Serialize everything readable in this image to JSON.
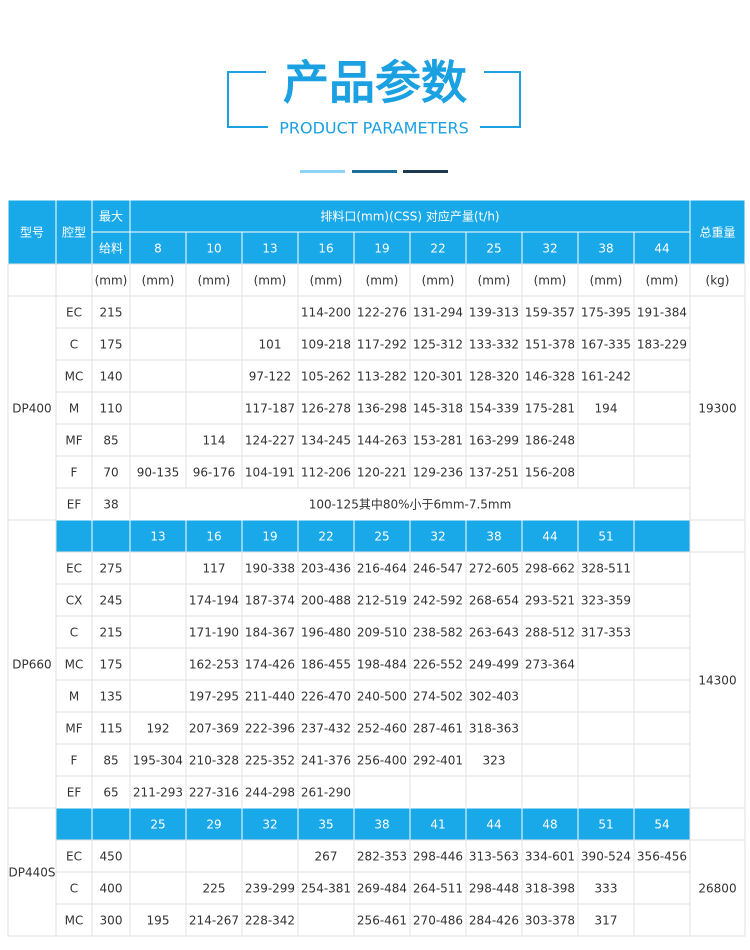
{
  "header": {
    "title": "产品参数",
    "subtitle": "PRODUCT PARAMETERS"
  },
  "table": {
    "head": {
      "model": "型号",
      "cavity": "腔型",
      "feed_top": "最大",
      "feed_bottom": "给料",
      "span": "排料口(mm)(CSS) 对应产量(t/h)",
      "weight": "总重量"
    },
    "units": [
      "(mm)",
      "(mm)",
      "(mm)",
      "(mm)",
      "(mm)",
      "(mm)",
      "(mm)",
      "(mm)",
      "(mm)",
      "(mm)",
      "(mm)",
      "(kg)"
    ],
    "groups": [
      {
        "model": "DP400",
        "weight": "19300",
        "sizes": [
          "8",
          "10",
          "13",
          "16",
          "19",
          "22",
          "25",
          "32",
          "38",
          "44"
        ],
        "rows": [
          {
            "cavity": "EC",
            "feed": "215",
            "cells": [
              null,
              null,
              null,
              "114-200",
              "122-276",
              "131-294",
              "139-313",
              "159-357",
              "175-395",
              "191-384"
            ]
          },
          {
            "cavity": "C",
            "feed": "175",
            "cells": [
              null,
              null,
              "101",
              "109-218",
              "117-292",
              "125-312",
              "133-332",
              "151-378",
              "167-335",
              "183-229"
            ]
          },
          {
            "cavity": "MC",
            "feed": "140",
            "cells": [
              null,
              null,
              "97-122",
              "105-262",
              "113-282",
              "120-301",
              "128-320",
              "146-328",
              "161-242",
              null
            ]
          },
          {
            "cavity": "M",
            "feed": "110",
            "cells": [
              null,
              null,
              "117-187",
              "126-278",
              "136-298",
              "145-318",
              "154-339",
              "175-281",
              "194",
              null
            ]
          },
          {
            "cavity": "MF",
            "feed": "85",
            "cells": [
              null,
              "114",
              "124-227",
              "134-245",
              "144-263",
              "153-281",
              "163-299",
              "186-248",
              null,
              null
            ]
          },
          {
            "cavity": "F",
            "feed": "70",
            "cells": [
              "90-135",
              "96-176",
              "104-191",
              "112-206",
              "120-221",
              "129-236",
              "137-251",
              "156-208",
              null,
              null
            ]
          },
          {
            "cavity": "EF",
            "feed": "38",
            "note": "100-125其中80%小于6mm-7.5mm"
          }
        ]
      },
      {
        "model": "DP660",
        "weight": "14300",
        "sizes": [
          "13",
          "16",
          "19",
          "22",
          "25",
          "32",
          "38",
          "44",
          "51",
          null
        ],
        "rows": [
          {
            "cavity": "EC",
            "feed": "275",
            "cells": [
              null,
              "117",
              "190-338",
              "203-436",
              "216-464",
              "246-547",
              "272-605",
              "298-662",
              "328-511",
              null
            ]
          },
          {
            "cavity": "CX",
            "feed": "245",
            "cells": [
              null,
              "174-194",
              "187-374",
              "200-488",
              "212-519",
              "242-592",
              "268-654",
              "293-521",
              "323-359",
              null
            ]
          },
          {
            "cavity": "C",
            "feed": "215",
            "cells": [
              null,
              "171-190",
              "184-367",
              "196-480",
              "209-510",
              "238-582",
              "263-643",
              "288-512",
              "317-353",
              null
            ]
          },
          {
            "cavity": "MC",
            "feed": "175",
            "cells": [
              null,
              "162-253",
              "174-426",
              "186-455",
              "198-484",
              "226-552",
              "249-499",
              "273-364",
              null,
              null
            ]
          },
          {
            "cavity": "M",
            "feed": "135",
            "cells": [
              null,
              "197-295",
              "211-440",
              "226-470",
              "240-500",
              "274-502",
              "302-403",
              null,
              null,
              null
            ]
          },
          {
            "cavity": "MF",
            "feed": "115",
            "cells": [
              "192",
              "207-369",
              "222-396",
              "237-432",
              "252-460",
              "287-461",
              "318-363",
              null,
              null,
              null
            ]
          },
          {
            "cavity": "F",
            "feed": "85",
            "cells": [
              "195-304",
              "210-328",
              "225-352",
              "241-376",
              "256-400",
              "292-401",
              "323",
              null,
              null,
              null
            ]
          },
          {
            "cavity": "EF",
            "feed": "65",
            "cells": [
              "211-293",
              "227-316",
              "244-298",
              "261-290",
              null,
              null,
              null,
              null,
              null,
              null
            ]
          }
        ]
      },
      {
        "model": "DP440S",
        "weight": "26800",
        "sizes": [
          "25",
          "29",
          "32",
          "35",
          "38",
          "41",
          "44",
          "48",
          "51",
          "54"
        ],
        "rows": [
          {
            "cavity": "EC",
            "feed": "450",
            "cells": [
              null,
              null,
              null,
              "267",
              "282-353",
              "298-446",
              "313-563",
              "334-601",
              "390-524",
              "356-456"
            ]
          },
          {
            "cavity": "C",
            "feed": "400",
            "cells": [
              null,
              "225",
              "239-299",
              "254-381",
              "269-484",
              "264-511",
              "298-448",
              "318-398",
              "333",
              null
            ]
          },
          {
            "cavity": "MC",
            "feed": "300",
            "cells": [
              "195",
              "214-267",
              "228-342",
              null,
              "256-461",
              "270-486",
              "284-426",
              "303-378",
              "317",
              null
            ]
          }
        ]
      }
    ]
  }
}
